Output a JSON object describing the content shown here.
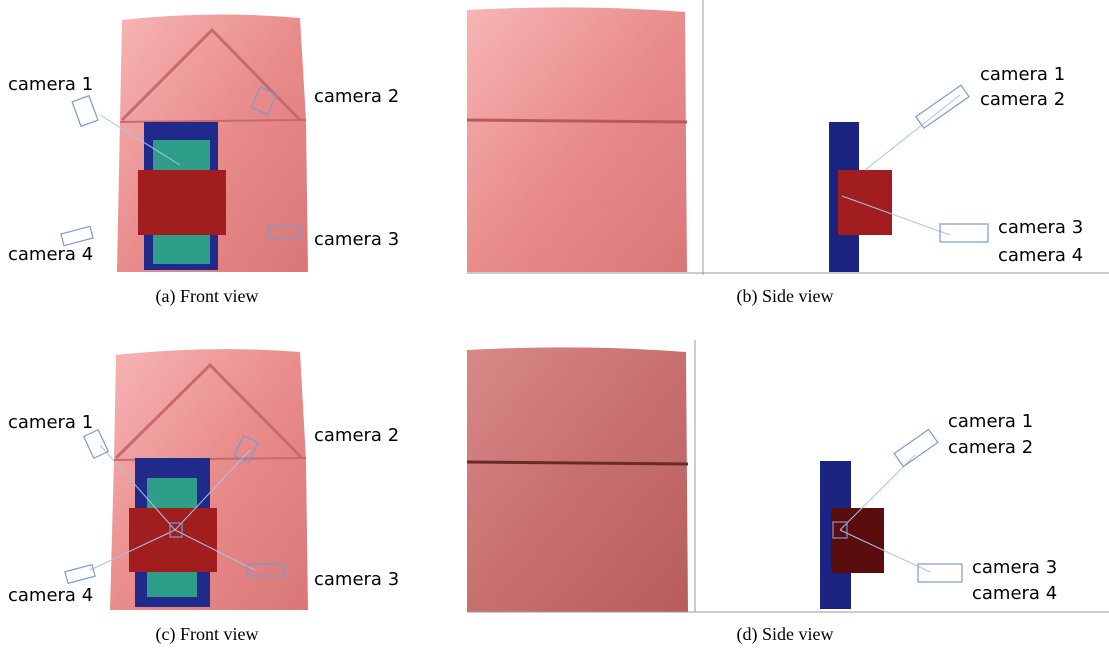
{
  "panels": [
    {
      "caption": "(a) Front view",
      "labels": [
        "camera 1",
        "camera 2",
        "camera 3",
        "camera 4"
      ]
    },
    {
      "caption": "(b) Side view",
      "labels": [
        "camera 1",
        "camera 2",
        "camera 3",
        "camera 4"
      ]
    },
    {
      "caption": "(c) Front view",
      "labels": [
        "camera 1",
        "camera 2",
        "camera 3",
        "camera 4"
      ]
    },
    {
      "caption": "(d) Side view",
      "labels": [
        "camera 1",
        "camera 2",
        "camera 3",
        "camera 4"
      ]
    }
  ]
}
